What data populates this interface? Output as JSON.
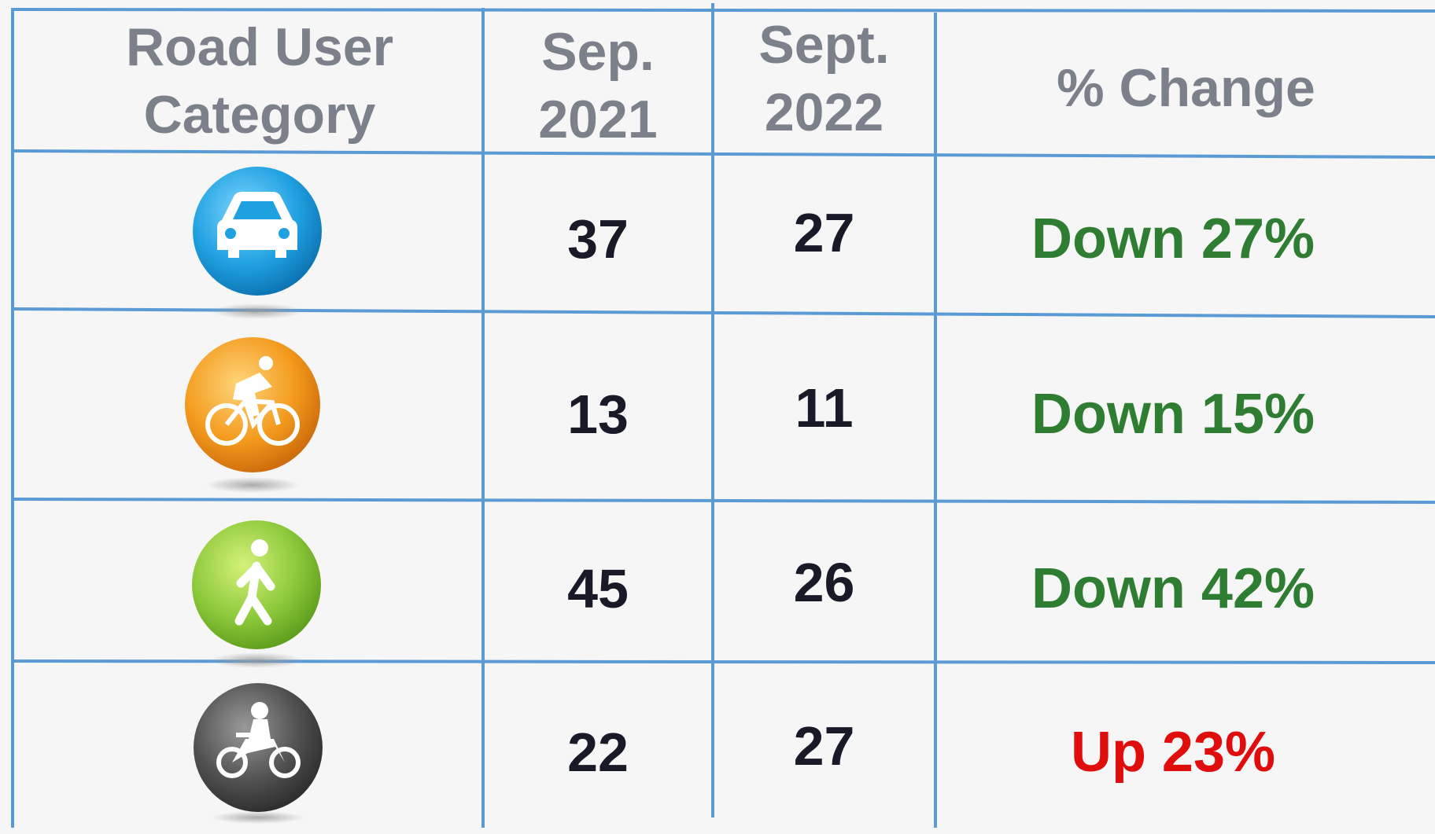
{
  "table": {
    "headers": [
      "Road User Category",
      "Sep. 2021",
      "Sept. 2022",
      "% Change"
    ],
    "rows": [
      {
        "sep_2021": "37",
        "sept_2022": "27",
        "change": "Down 27%",
        "color": "#2f7d32"
      },
      {
        "sep_2021": "13",
        "sept_2022": "11",
        "change": "Down 15%",
        "color": "#2f7d32"
      },
      {
        "sep_2021": "45",
        "sept_2022": "26",
        "change": "Down 42%",
        "color": "#2f7d32"
      },
      {
        "sep_2021": "22",
        "sept_2022": "27",
        "change": "Up 23%",
        "color": "#e00d0d"
      }
    ]
  }
}
